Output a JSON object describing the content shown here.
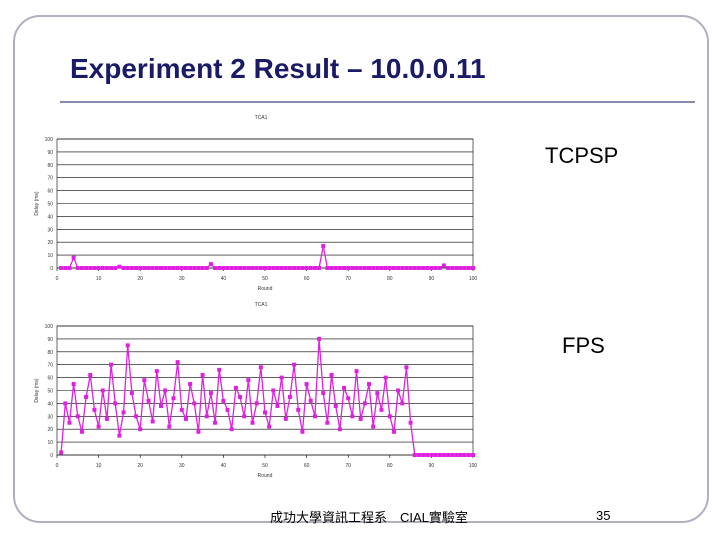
{
  "title": "Experiment 2 Result – 10.0.0.11",
  "labels": [
    "TCPSP",
    "FPS"
  ],
  "footer": "成功大學資訊工程系　CIAL實驗室",
  "page_number": "35",
  "chart_data": [
    {
      "type": "line",
      "title": "TCA1",
      "x_label": "Round",
      "y_label": "Delay (ms)",
      "color": "#e020e0",
      "grid": true,
      "xlim": [
        0,
        100
      ],
      "xticks": [
        0,
        10,
        20,
        30,
        40,
        50,
        60,
        70,
        80,
        90,
        100
      ],
      "ylim": [
        0,
        100
      ],
      "yticks": [
        0,
        10,
        20,
        30,
        40,
        50,
        60,
        70,
        80,
        90,
        100
      ],
      "x": [
        1,
        2,
        3,
        4,
        5,
        6,
        7,
        8,
        9,
        10,
        11,
        12,
        13,
        14,
        15,
        16,
        17,
        18,
        19,
        20,
        21,
        22,
        23,
        24,
        25,
        26,
        27,
        28,
        29,
        30,
        31,
        32,
        33,
        34,
        35,
        36,
        37,
        38,
        39,
        40,
        41,
        42,
        43,
        44,
        45,
        46,
        47,
        48,
        49,
        50,
        51,
        52,
        53,
        54,
        55,
        56,
        57,
        58,
        59,
        60,
        61,
        62,
        63,
        64,
        65,
        66,
        67,
        68,
        69,
        70,
        71,
        72,
        73,
        74,
        75,
        76,
        77,
        78,
        79,
        80,
        81,
        82,
        83,
        84,
        85,
        86,
        87,
        88,
        89,
        90,
        91,
        92,
        93,
        94,
        95,
        96,
        97,
        98,
        99,
        100
      ],
      "values": [
        0,
        0,
        0,
        8,
        0,
        0,
        0,
        0,
        0,
        0,
        0,
        0,
        0,
        0,
        1,
        0,
        0,
        0,
        0,
        0,
        0,
        0,
        0,
        0,
        0,
        0,
        0,
        0,
        0,
        0,
        0,
        0,
        0,
        0,
        0,
        0,
        3,
        0,
        0,
        0,
        0,
        0,
        0,
        0,
        0,
        0,
        0,
        0,
        0,
        0,
        0,
        0,
        0,
        0,
        0,
        0,
        0,
        0,
        0,
        0,
        0,
        0,
        0,
        17,
        0,
        0,
        0,
        0,
        0,
        0,
        0,
        0,
        0,
        0,
        0,
        0,
        0,
        0,
        0,
        0,
        0,
        0,
        0,
        0,
        0,
        0,
        0,
        0,
        0,
        0,
        0,
        0,
        2,
        0,
        0,
        0,
        0,
        0,
        0,
        0
      ]
    },
    {
      "type": "line",
      "title": "TCA1",
      "x_label": "Round",
      "y_label": "Delay (ms)",
      "color": "#e020e0",
      "grid": true,
      "xlim": [
        0,
        100
      ],
      "xticks": [
        0,
        10,
        20,
        30,
        40,
        50,
        60,
        70,
        80,
        90,
        100
      ],
      "ylim": [
        0,
        100
      ],
      "yticks": [
        0,
        10,
        20,
        30,
        40,
        50,
        60,
        70,
        80,
        90,
        100
      ],
      "x": [
        1,
        2,
        3,
        4,
        5,
        6,
        7,
        8,
        9,
        10,
        11,
        12,
        13,
        14,
        15,
        16,
        17,
        18,
        19,
        20,
        21,
        22,
        23,
        24,
        25,
        26,
        27,
        28,
        29,
        30,
        31,
        32,
        33,
        34,
        35,
        36,
        37,
        38,
        39,
        40,
        41,
        42,
        43,
        44,
        45,
        46,
        47,
        48,
        49,
        50,
        51,
        52,
        53,
        54,
        55,
        56,
        57,
        58,
        59,
        60,
        61,
        62,
        63,
        64,
        65,
        66,
        67,
        68,
        69,
        70,
        71,
        72,
        73,
        74,
        75,
        76,
        77,
        78,
        79,
        80,
        81,
        82,
        83,
        84,
        85,
        86,
        87,
        88,
        89,
        90,
        91,
        92,
        93,
        94,
        95,
        96,
        97,
        98,
        99,
        100
      ],
      "values": [
        2,
        40,
        25,
        55,
        30,
        18,
        45,
        62,
        35,
        22,
        50,
        28,
        70,
        40,
        15,
        33,
        85,
        48,
        30,
        20,
        58,
        42,
        26,
        65,
        38,
        50,
        22,
        44,
        72,
        35,
        28,
        55,
        40,
        18,
        62,
        30,
        48,
        25,
        66,
        42,
        35,
        20,
        52,
        45,
        30,
        58,
        25,
        40,
        68,
        33,
        22,
        50,
        38,
        60,
        28,
        45,
        70,
        35,
        18,
        55,
        42,
        30,
        90,
        48,
        25,
        62,
        38,
        20,
        52,
        44,
        30,
        65,
        28,
        40,
        55,
        22,
        48,
        35,
        60,
        30,
        18,
        50,
        40,
        68,
        25,
        0,
        0,
        0,
        0,
        0,
        0,
        0,
        0,
        0,
        0,
        0,
        0,
        0,
        0,
        0
      ]
    }
  ]
}
